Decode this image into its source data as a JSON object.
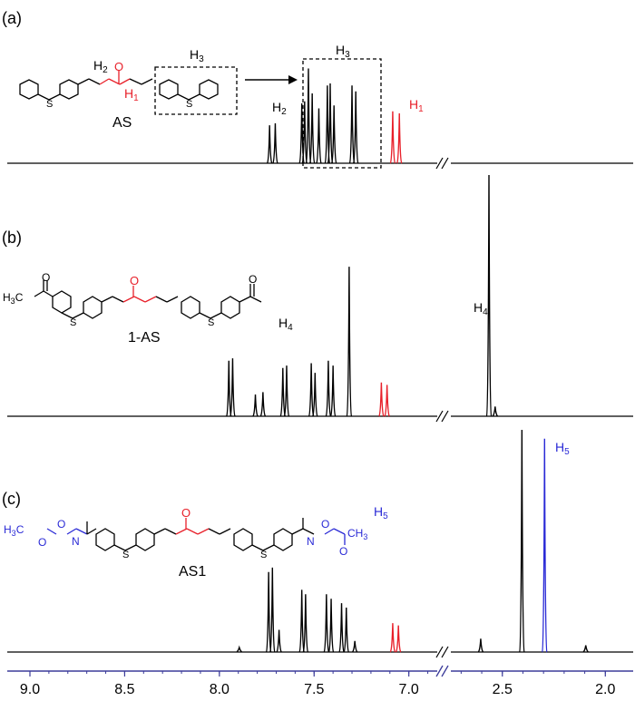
{
  "chart_data": {
    "type": "line",
    "xlabel": "",
    "ylabel": "",
    "x_axis": {
      "ticks": [
        "9.0",
        "8.5",
        "8.0",
        "7.5",
        "7.0",
        "2.5",
        "2.0"
      ],
      "break_between": [
        "7.0",
        "2.5"
      ],
      "reversed": true,
      "axis_color": "#3b3b9a"
    },
    "panels": [
      {
        "label": "(a)",
        "compound": "AS",
        "annotations": [
          "H2",
          "H3",
          "H1"
        ],
        "structure_labels": [
          "H2",
          "H1",
          "H3"
        ],
        "peaks": [
          {
            "ppm": 7.735,
            "height": 0.38,
            "color": "#000000"
          },
          {
            "ppm": 7.705,
            "height": 0.4,
            "color": "#000000"
          },
          {
            "ppm": 7.565,
            "height": 0.6,
            "color": "#000000"
          },
          {
            "ppm": 7.55,
            "height": 0.62,
            "color": "#000000"
          },
          {
            "ppm": 7.53,
            "height": 0.95,
            "color": "#000000"
          },
          {
            "ppm": 7.51,
            "height": 0.7,
            "color": "#000000"
          },
          {
            "ppm": 7.475,
            "height": 0.55,
            "color": "#000000"
          },
          {
            "ppm": 7.43,
            "height": 0.78,
            "color": "#000000"
          },
          {
            "ppm": 7.415,
            "height": 0.8,
            "color": "#000000"
          },
          {
            "ppm": 7.395,
            "height": 0.58,
            "color": "#000000"
          },
          {
            "ppm": 7.3,
            "height": 0.78,
            "color": "#000000"
          },
          {
            "ppm": 7.28,
            "height": 0.72,
            "color": "#000000"
          },
          {
            "ppm": 7.085,
            "height": 0.52,
            "color": "#e8202a"
          },
          {
            "ppm": 7.05,
            "height": 0.5,
            "color": "#e8202a"
          }
        ]
      },
      {
        "label": "(b)",
        "compound": "1-AS",
        "annotations": [
          "H4"
        ],
        "structure_labels": [
          "H3C",
          "H4"
        ],
        "peaks": [
          {
            "ppm": 7.95,
            "height": 0.23,
            "color": "#000000"
          },
          {
            "ppm": 7.93,
            "height": 0.24,
            "color": "#000000"
          },
          {
            "ppm": 7.81,
            "height": 0.09,
            "color": "#000000"
          },
          {
            "ppm": 7.77,
            "height": 0.1,
            "color": "#000000"
          },
          {
            "ppm": 7.665,
            "height": 0.2,
            "color": "#000000"
          },
          {
            "ppm": 7.645,
            "height": 0.21,
            "color": "#000000"
          },
          {
            "ppm": 7.515,
            "height": 0.22,
            "color": "#000000"
          },
          {
            "ppm": 7.495,
            "height": 0.18,
            "color": "#000000"
          },
          {
            "ppm": 7.425,
            "height": 0.23,
            "color": "#000000"
          },
          {
            "ppm": 7.4,
            "height": 0.21,
            "color": "#000000"
          },
          {
            "ppm": 7.315,
            "height": 0.62,
            "color": "#000000"
          },
          {
            "ppm": 7.145,
            "height": 0.14,
            "color": "#e8202a"
          },
          {
            "ppm": 7.115,
            "height": 0.13,
            "color": "#e8202a"
          },
          {
            "ppm": 2.565,
            "height": 1.0,
            "color": "#000000"
          },
          {
            "ppm": 2.535,
            "height": 0.04,
            "color": "#000000"
          }
        ]
      },
      {
        "label": "(c)",
        "compound": "AS1",
        "annotations": [
          "H5"
        ],
        "structure_labels": [
          "H3C",
          "O",
          "N",
          "O",
          "N",
          "H5",
          "CH3",
          "O",
          "O"
        ],
        "peaks": [
          {
            "ppm": 7.895,
            "height": 0.02,
            "color": "#000000"
          },
          {
            "ppm": 7.74,
            "height": 0.36,
            "color": "#000000"
          },
          {
            "ppm": 7.72,
            "height": 0.38,
            "color": "#000000"
          },
          {
            "ppm": 7.685,
            "height": 0.1,
            "color": "#000000"
          },
          {
            "ppm": 7.565,
            "height": 0.28,
            "color": "#000000"
          },
          {
            "ppm": 7.545,
            "height": 0.26,
            "color": "#000000"
          },
          {
            "ppm": 7.435,
            "height": 0.26,
            "color": "#000000"
          },
          {
            "ppm": 7.41,
            "height": 0.24,
            "color": "#000000"
          },
          {
            "ppm": 7.355,
            "height": 0.22,
            "color": "#000000"
          },
          {
            "ppm": 7.33,
            "height": 0.2,
            "color": "#000000"
          },
          {
            "ppm": 7.285,
            "height": 0.05,
            "color": "#000000"
          },
          {
            "ppm": 7.085,
            "height": 0.13,
            "color": "#e8202a"
          },
          {
            "ppm": 7.055,
            "height": 0.12,
            "color": "#e8202a"
          },
          {
            "ppm": 2.605,
            "height": 0.06,
            "color": "#000000"
          },
          {
            "ppm": 2.405,
            "height": 1.0,
            "color": "#000000"
          },
          {
            "ppm": 2.295,
            "height": 0.96,
            "color": "#2a2ad6"
          },
          {
            "ppm": 2.095,
            "height": 0.03,
            "color": "#000000"
          }
        ]
      }
    ],
    "colors": {
      "spectrum": "#000000",
      "highlight_red": "#e8202a",
      "highlight_blue": "#2a2ad6",
      "axis": "#3b3b9a"
    }
  }
}
